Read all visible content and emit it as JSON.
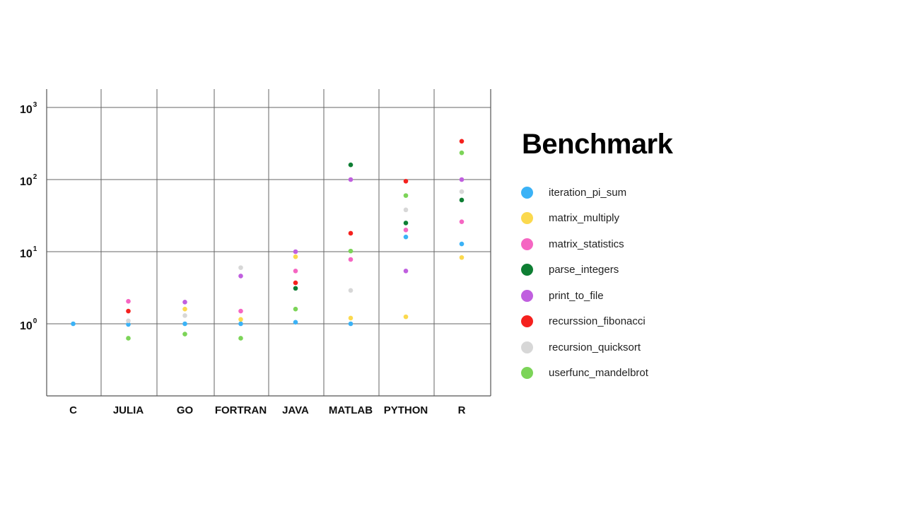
{
  "chart_data": {
    "type": "scatter",
    "title": "Benchmark",
    "y_scale": "log",
    "ylim": [
      0.1,
      1500
    ],
    "y_ticks": [
      {
        "value": 1,
        "base": "10",
        "exp": "0"
      },
      {
        "value": 10,
        "base": "10",
        "exp": "1"
      },
      {
        "value": 100,
        "base": "10",
        "exp": "2"
      },
      {
        "value": 1000,
        "base": "10",
        "exp": "3"
      }
    ],
    "categories": [
      "C",
      "JULIA",
      "GO",
      "FORTRAN",
      "JAVA",
      "MATLAB",
      "PYTHON",
      "R"
    ],
    "grid": true,
    "legend_position": "right",
    "series": [
      {
        "name": "iteration_pi_sum",
        "color": "#3BB2F6",
        "values": [
          1.0,
          0.98,
          1.0,
          1.0,
          1.05,
          1.0,
          16,
          12.8
        ]
      },
      {
        "name": "matrix_multiply",
        "color": "#FBD94E",
        "values": [
          null,
          null,
          1.6,
          1.15,
          8.5,
          1.2,
          1.25,
          8.3
        ]
      },
      {
        "name": "matrix_statistics",
        "color": "#F566C2",
        "values": [
          null,
          2.05,
          null,
          1.5,
          5.4,
          7.8,
          20,
          26
        ]
      },
      {
        "name": "parse_integers",
        "color": "#0E7E33",
        "values": [
          null,
          null,
          null,
          null,
          3.1,
          160,
          25,
          52
        ]
      },
      {
        "name": "print_to_file",
        "color": "#C05FDF",
        "values": [
          null,
          null,
          2.0,
          4.6,
          10,
          100,
          5.4,
          100
        ]
      },
      {
        "name": "recurssion_fibonacci",
        "color": "#F5211E",
        "values": [
          null,
          1.5,
          null,
          null,
          3.7,
          18,
          95,
          340
        ]
      },
      {
        "name": "recursion_quicksort",
        "color": "#D7D7D7",
        "values": [
          null,
          1.1,
          1.3,
          6.0,
          null,
          2.9,
          38,
          68
        ]
      },
      {
        "name": "userfunc_mandelbrot",
        "color": "#7CD458",
        "values": [
          null,
          0.63,
          0.72,
          0.63,
          1.6,
          10.2,
          60,
          235
        ]
      }
    ]
  }
}
